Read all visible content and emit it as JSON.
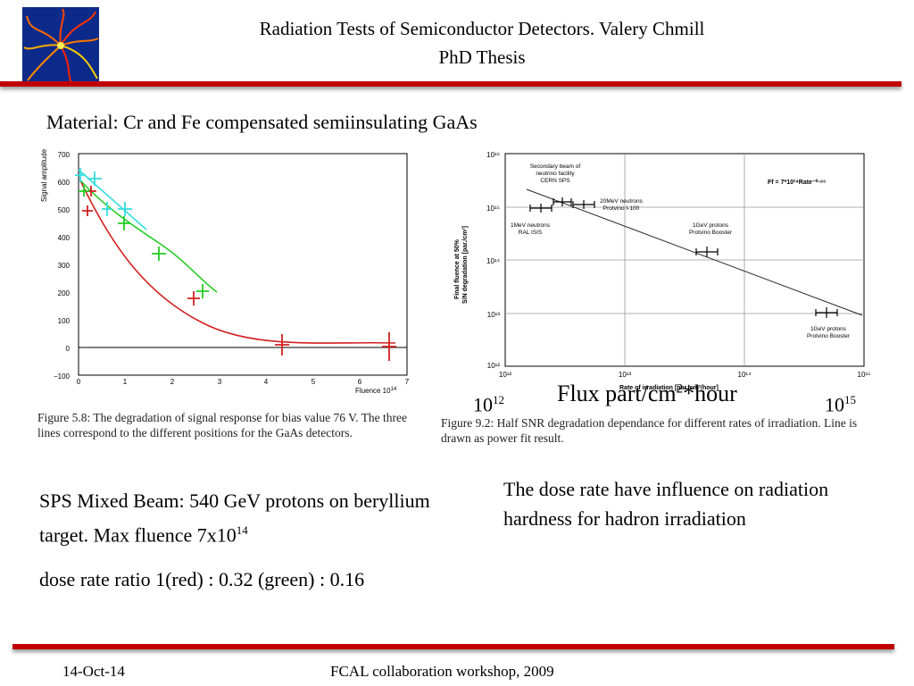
{
  "header": {
    "title_line1": "Radiation Tests of Semiconductor Detectors. Valery Chmill",
    "title_line2": "PhD Thesis"
  },
  "material": "Material: Cr and Fe compensated semiinsulating GaAs",
  "left_figure": {
    "y_axis_label": "Signal amplitude",
    "x_axis_label": "Fluence 10",
    "x_axis_label_exp": "14",
    "y_ticks": [
      "700",
      "600",
      "500",
      "400",
      "300",
      "200",
      "100",
      "0",
      "−100"
    ],
    "x_ticks": [
      "0",
      "1",
      "2",
      "3",
      "4",
      "5",
      "6",
      "7"
    ],
    "caption_label": "Figure",
    "caption_text": " 5.8: The degradation of signal response for bias value 76 V. The three lines correspond to the different positions for the GaAs detectors."
  },
  "right_figure": {
    "y_axis_label_1": "Final fluence at 50%",
    "y_axis_label_2": "S/N degradation [par./cm²]",
    "x_axis_label": "Rate of irradiation [par./cm²/hour]",
    "formula": "Ff = 7*10²⁴Rate⁻⁰·⁸⁶",
    "y_ticks": [
      "10¹⁶",
      "10¹⁵",
      "10¹⁴",
      "10¹³",
      "10¹²"
    ],
    "x_ticks": [
      "10¹²",
      "10¹³",
      "10¹⁴",
      "10¹⁵"
    ],
    "annotations": {
      "a1_l1": "Secondary beam of",
      "a1_l2": "neutrino facility",
      "a1_l3": "CERN SPS",
      "a2_l1": "20MeV neutrons",
      "a2_l2": "Protvino I-100",
      "a3_l1": "1MeV neutrons",
      "a3_l2": "RAL ISIS",
      "a4_l1": "1GeV protons",
      "a4_l2": "Protvino Booster",
      "a5_l1": "1GeV protons",
      "a5_l2": "Protvino Booster"
    },
    "caption_label": "Figure",
    "caption_text": " 9.2: Half SNR degradation dependance for different rates of irradiation. Line is drawn as power fit result."
  },
  "overlay": {
    "left_base": "10",
    "left_exp": "12",
    "flux": "Flux part/cm",
    "flux_exp": "2",
    "flux_tail": "*hour",
    "right_base": "10",
    "right_exp": "15"
  },
  "text_blocks": {
    "sps": "SPS Mixed Beam: 540 GeV protons on beryllium target. Max fluence 7x10",
    "sps_exp": "14",
    "dose": "dose rate ratio 1(red) : 0.32 (green) : 0.16",
    "influence": "The dose rate have influence on radiation hardness for hadron irradiation"
  },
  "footer": {
    "date": "14-Oct-14",
    "event": "FCAL collaboration workshop, 2009"
  },
  "colors": {
    "rule": "#c00000",
    "red_series": "#d42020",
    "green_series": "#22cc22",
    "cyan_series": "#33dddd",
    "logo_bg": "#0b2a8a"
  }
}
